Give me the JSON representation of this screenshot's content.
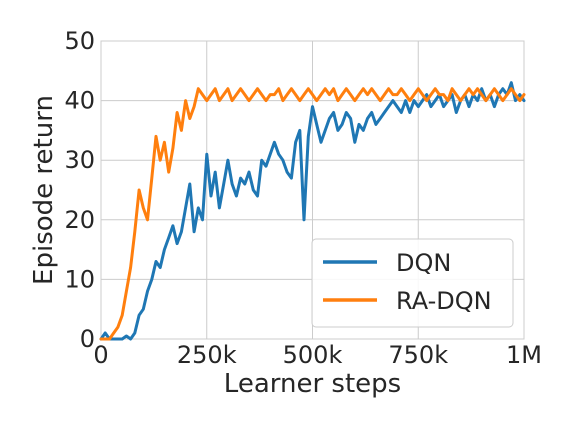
{
  "chart_data": {
    "type": "line",
    "title": "",
    "xlabel": "Learner steps",
    "ylabel": "Episode return",
    "xlim": [
      0,
      1000000
    ],
    "ylim": [
      0,
      50
    ],
    "x_ticks": [
      0,
      250000,
      500000,
      750000,
      1000000
    ],
    "x_tick_labels": [
      "0",
      "250k",
      "500k",
      "750k",
      "1M"
    ],
    "y_ticks": [
      0,
      10,
      20,
      30,
      40,
      50
    ],
    "y_tick_labels": [
      "0",
      "10",
      "20",
      "30",
      "40",
      "50"
    ],
    "grid": true,
    "legend_position": "lower-right",
    "series": [
      {
        "name": "DQN",
        "color": "#1f77b4",
        "x": [
          0,
          10000,
          20000,
          30000,
          40000,
          50000,
          60000,
          70000,
          80000,
          90000,
          100000,
          110000,
          120000,
          130000,
          140000,
          150000,
          160000,
          170000,
          180000,
          190000,
          200000,
          210000,
          220000,
          230000,
          240000,
          250000,
          260000,
          270000,
          280000,
          290000,
          300000,
          310000,
          320000,
          330000,
          340000,
          350000,
          360000,
          370000,
          380000,
          390000,
          400000,
          410000,
          420000,
          430000,
          440000,
          450000,
          460000,
          470000,
          480000,
          490000,
          500000,
          510000,
          520000,
          530000,
          540000,
          550000,
          560000,
          570000,
          580000,
          590000,
          600000,
          610000,
          620000,
          630000,
          640000,
          650000,
          660000,
          670000,
          680000,
          690000,
          700000,
          710000,
          720000,
          730000,
          740000,
          750000,
          760000,
          770000,
          780000,
          790000,
          800000,
          810000,
          820000,
          830000,
          840000,
          850000,
          860000,
          870000,
          880000,
          890000,
          900000,
          910000,
          920000,
          930000,
          940000,
          950000,
          960000,
          970000,
          980000,
          990000,
          1000000
        ],
        "values": [
          0,
          1,
          0,
          0,
          0,
          0,
          0.5,
          0,
          1,
          4,
          5,
          8,
          10,
          13,
          12,
          15,
          17,
          19,
          16,
          18,
          22,
          26,
          18,
          22,
          20,
          31,
          24,
          28,
          22,
          26,
          30,
          26,
          24,
          27,
          26,
          28,
          25,
          24,
          30,
          29,
          31,
          33,
          31,
          30,
          28,
          27,
          33,
          35,
          20,
          34,
          39,
          36,
          33,
          35,
          37,
          38,
          35,
          36,
          38,
          37,
          33,
          36,
          35,
          37,
          38,
          36,
          37,
          38,
          39,
          40,
          39,
          38,
          40,
          38,
          40,
          39,
          40,
          41,
          39,
          40,
          41,
          39,
          40,
          41,
          38,
          40,
          41,
          39,
          41,
          40,
          42,
          40,
          41,
          39,
          41,
          42,
          41,
          43,
          40,
          41,
          40
        ]
      },
      {
        "name": "RA-DQN",
        "color": "#ff7f0e",
        "x": [
          0,
          10000,
          20000,
          30000,
          40000,
          50000,
          60000,
          70000,
          80000,
          90000,
          100000,
          110000,
          120000,
          130000,
          140000,
          150000,
          160000,
          170000,
          180000,
          190000,
          200000,
          210000,
          220000,
          230000,
          240000,
          250000,
          260000,
          270000,
          280000,
          290000,
          300000,
          310000,
          320000,
          330000,
          340000,
          350000,
          360000,
          370000,
          380000,
          390000,
          400000,
          410000,
          420000,
          430000,
          440000,
          450000,
          460000,
          470000,
          480000,
          490000,
          500000,
          510000,
          520000,
          530000,
          540000,
          550000,
          560000,
          570000,
          580000,
          590000,
          600000,
          610000,
          620000,
          630000,
          640000,
          650000,
          660000,
          670000,
          680000,
          690000,
          700000,
          710000,
          720000,
          730000,
          740000,
          750000,
          760000,
          770000,
          780000,
          790000,
          800000,
          810000,
          820000,
          830000,
          840000,
          850000,
          860000,
          870000,
          880000,
          890000,
          900000,
          910000,
          920000,
          930000,
          940000,
          950000,
          960000,
          970000,
          980000,
          990000,
          1000000
        ],
        "values": [
          0,
          0,
          0,
          1,
          2,
          4,
          8,
          12,
          18,
          25,
          22,
          20,
          27,
          34,
          30,
          33,
          28,
          32,
          38,
          35,
          40,
          37,
          39,
          42,
          41,
          40,
          41,
          42,
          40,
          41,
          42,
          40,
          41,
          42,
          41,
          40,
          41,
          42,
          41,
          40,
          41,
          41,
          42,
          40,
          41,
          42,
          41,
          40,
          41,
          42,
          41,
          40,
          41,
          42,
          41,
          42,
          40,
          41,
          42,
          41,
          40,
          41,
          42,
          41,
          42,
          41,
          40,
          41,
          42,
          41,
          41,
          42,
          41,
          40,
          41,
          42,
          41,
          40,
          41,
          42,
          41,
          41,
          40,
          42,
          41,
          40,
          41,
          42,
          41,
          42,
          41,
          40,
          41,
          42,
          41,
          40,
          41,
          42,
          41,
          40,
          41
        ]
      }
    ]
  }
}
